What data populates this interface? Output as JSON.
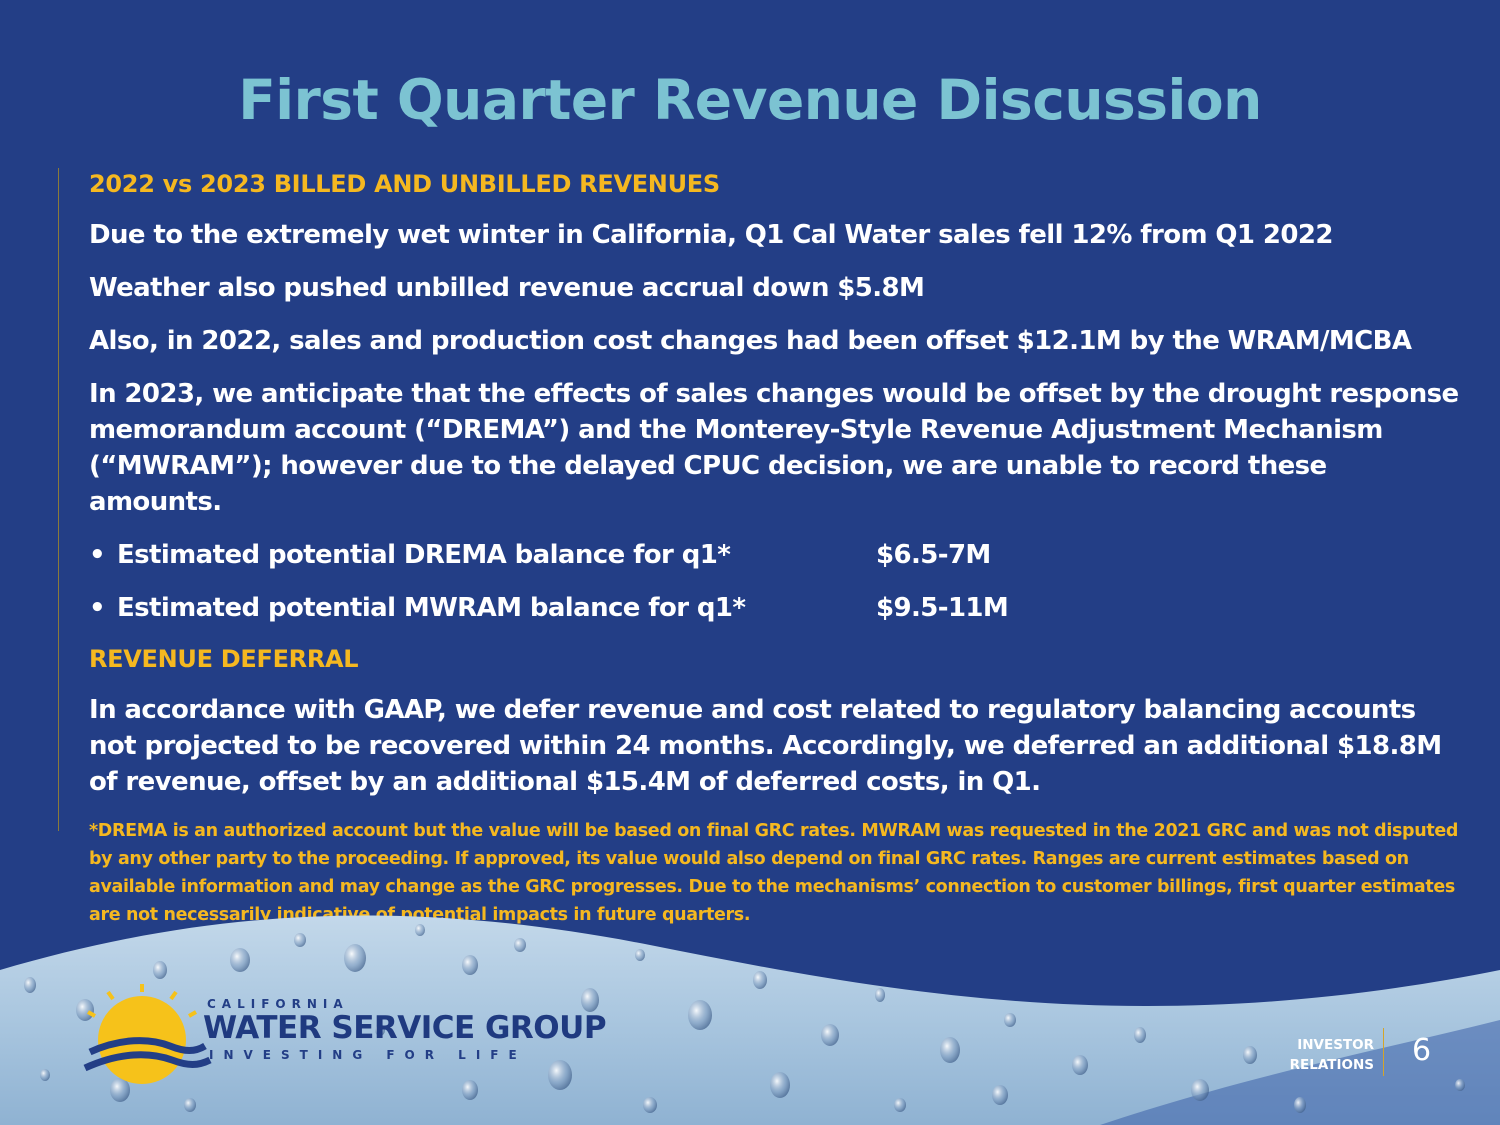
{
  "title": "First Quarter Revenue Discussion",
  "section1": {
    "heading": "2022 vs 2023 BILLED AND UNBILLED REVENUES",
    "paragraphs": [
      "Due to the extremely wet winter in California, Q1 Cal Water sales fell 12% from Q1 2022",
      "Weather also pushed unbilled revenue accrual down $5.8M",
      "Also, in 2022, sales and production cost changes had been offset $12.1M by the WRAM/MCBA",
      "In 2023, we anticipate that the effects of sales changes would be offset by the drought response memorandum account (“DREMA”) and the Monterey-Style Revenue Adjustment Mechanism (“MWRAM”); however due to the delayed CPUC decision, we are unable to record these amounts."
    ],
    "bullets": [
      {
        "label": "Estimated potential DREMA balance for q1*",
        "value": "$6.5-7M"
      },
      {
        "label": "Estimated potential MWRAM balance for q1*",
        "value": "$9.5-11M"
      }
    ]
  },
  "section2": {
    "heading": "REVENUE DEFERRAL",
    "paragraph": "In accordance with GAAP, we defer revenue and cost related to regulatory balancing accounts not projected to be recovered within 24 months. Accordingly, we deferred an additional $18.8M of revenue, offset by an additional $15.4M of deferred costs, in Q1."
  },
  "footnote": "*DREMA is an authorized account but the value will be based on final GRC rates. MWRAM was requested in the 2021 GRC and was not disputed by any other party to the proceeding. If approved, its value would also depend on final GRC rates. Ranges are current estimates based on available information and may change as the GRC progresses. Due to the mechanisms’ connection to customer billings, first quarter estimates are not necessarily indicative of potential impacts in future quarters.",
  "footer": {
    "logo_small": "CALIFORNIA",
    "logo_main": "WATER SERVICE GROUP",
    "logo_tagline": "INVESTING FOR LIFE",
    "investor_relations_line1": "INVESTOR",
    "investor_relations_line2": "RELATIONS",
    "page_number": "6"
  },
  "colors": {
    "background": "#233e86",
    "title": "#7cc3d2",
    "accent": "#f5b820",
    "text": "#ffffff"
  },
  "icons": [
    "sun-logo-icon",
    "wave-logo-icon",
    "water-droplets-background"
  ]
}
